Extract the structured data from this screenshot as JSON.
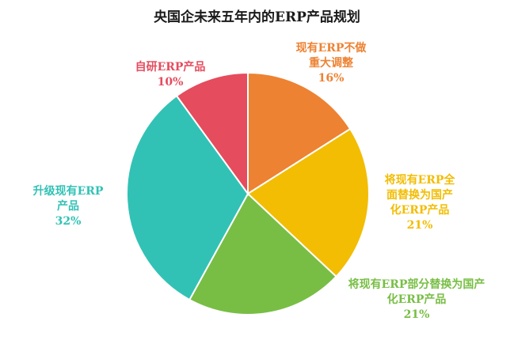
{
  "chart_data": {
    "type": "pie",
    "title": "央国企未来五年内的ERP产品规划",
    "slices": [
      {
        "label_lines": [
          "现有ERP不做",
          "重大调整"
        ],
        "value": 16,
        "value_label": "16%",
        "color": "#ED8232"
      },
      {
        "label_lines": [
          "将现有ERP全",
          "面替换为国产",
          "化ERP产品"
        ],
        "value": 21,
        "value_label": "21%",
        "color": "#F2BD03"
      },
      {
        "label_lines": [
          "将现有ERP部分替换为国产",
          "化ERP产品"
        ],
        "value": 21,
        "value_label": "21%",
        "color": "#78BE45"
      },
      {
        "label_lines": [
          "升级现有ERP",
          "产品"
        ],
        "value": 32,
        "value_label": "32%",
        "color": "#32C2B5"
      },
      {
        "label_lines": [
          "自研ERP产品"
        ],
        "value": 10,
        "value_label": "10%",
        "color": "#E54C5E"
      }
    ],
    "legend": "none",
    "start": "top",
    "direction": "clockwise"
  }
}
